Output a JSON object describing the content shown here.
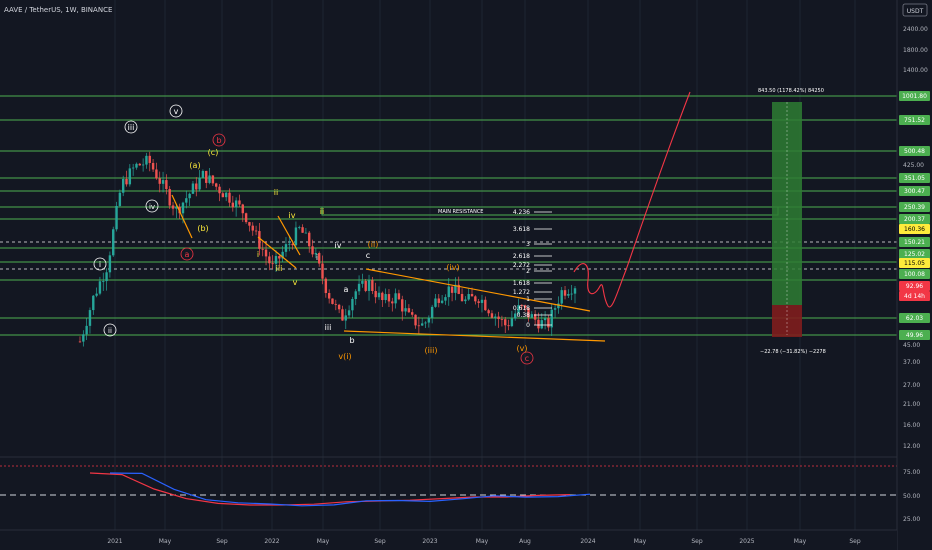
{
  "header": {
    "symbol_line": "AAVE / TetherUS, 1W, BINANCE"
  },
  "axis": {
    "unit_badge": "USDT",
    "price_ticks": [
      "2400.00",
      "1800.00",
      "1400.00",
      "425.00",
      "45.00",
      "37.00",
      "27.00",
      "21.00",
      "16.00",
      "12.00"
    ],
    "indicator_ticks": [
      "75.00",
      "50.00",
      "25.00"
    ],
    "time_ticks": [
      "2021",
      "May",
      "Sep",
      "2022",
      "May",
      "Sep",
      "2023",
      "May",
      "Aug",
      "2024",
      "May",
      "Sep",
      "2025",
      "May",
      "Sep"
    ]
  },
  "levels": [
    {
      "label": "1001.80",
      "color": "#4caf50",
      "text_color": "#ffffff"
    },
    {
      "label": "751.52",
      "color": "#4caf50",
      "text_color": "#ffffff"
    },
    {
      "label": "500.48",
      "color": "#4caf50",
      "text_color": "#ffffff"
    },
    {
      "label": "351.05",
      "color": "#4caf50",
      "text_color": "#ffffff"
    },
    {
      "label": "300.47",
      "color": "#4caf50",
      "text_color": "#ffffff"
    },
    {
      "label": "250.39",
      "color": "#4caf50",
      "text_color": "#ffffff"
    },
    {
      "label": "200.37",
      "color": "#4caf50",
      "text_color": "#ffffff"
    },
    {
      "label": "160.36",
      "color": "#ffeb3b",
      "text_color": "#000000"
    },
    {
      "label": "150.21",
      "color": "#4caf50",
      "text_color": "#ffffff"
    },
    {
      "label": "125.02",
      "color": "#4caf50",
      "text_color": "#ffffff"
    },
    {
      "label": "115.05",
      "color": "#ffeb3b",
      "text_color": "#000000"
    },
    {
      "label": "100.08",
      "color": "#4caf50",
      "text_color": "#ffffff"
    },
    {
      "label": "92.96",
      "color": "#f23645",
      "text_color": "#ffffff"
    },
    {
      "label": "4d 14h",
      "color": "#f23645",
      "text_color": "#ffffff"
    },
    {
      "label": "62.03",
      "color": "#4caf50",
      "text_color": "#ffffff"
    },
    {
      "label": "49.96",
      "color": "#4caf50",
      "text_color": "#ffffff"
    }
  ],
  "annotations": {
    "main_resistance": "MAIN RESISTANCE",
    "target_label": "843.50 (1178.42%) 84250",
    "stop_label": "−22.78 (−31.82%) −2278",
    "fib": [
      "4.236",
      "3.618",
      "3",
      "2.618",
      "2.272",
      "2",
      "1.618",
      "1.272",
      "1",
      "0.618",
      "0.38",
      "0"
    ]
  },
  "wave_labels": {
    "minor_circled": [
      "i",
      "ii",
      "iii",
      "iv",
      "v"
    ],
    "intermediate": [
      "(a)",
      "(b)",
      "(c)"
    ],
    "primary_circled_red": [
      "a",
      "b",
      "c"
    ],
    "roman": [
      "i",
      "ii",
      "iii",
      "iv",
      "v",
      "ii",
      "iv",
      "iii",
      "a",
      "b",
      "c"
    ],
    "orange": [
      "(ii)",
      "(iv)",
      "(iii)",
      "(v)",
      "v(i)"
    ]
  },
  "chart_data": {
    "type": "line",
    "scale": "log",
    "x": [
      "2020-11",
      "2020-12",
      "2021-01",
      "2021-02",
      "2021-03",
      "2021-04",
      "2021-05",
      "2021-06",
      "2021-07",
      "2021-08",
      "2021-09",
      "2021-10",
      "2021-11",
      "2021-12",
      "2022-01",
      "2022-02",
      "2022-03",
      "2022-04",
      "2022-05",
      "2022-06",
      "2022-07",
      "2022-08",
      "2022-09",
      "2022-10",
      "2022-11",
      "2022-12",
      "2023-01",
      "2023-02",
      "2023-03",
      "2023-04",
      "2023-05",
      "2023-06",
      "2023-07",
      "2023-08",
      "2023-09",
      "2023-10",
      "2023-11"
    ],
    "series": [
      {
        "values": [
          45,
          80,
          120,
          330,
          420,
          450,
          330,
          240,
          300,
          380,
          320,
          280,
          230,
          160,
          115,
          150,
          190,
          140,
          85,
          60,
          85,
          95,
          75,
          80,
          60,
          55,
          80,
          90,
          75,
          80,
          65,
          55,
          70,
          60,
          55,
          85,
          93
        ]
      }
    ],
    "ylim": [
      12,
      2400
    ],
    "indicator": {
      "ylim": [
        10,
        100
      ],
      "levels": [
        85,
        50
      ],
      "values": [
        80,
        78,
        60,
        48,
        42,
        40,
        40,
        41,
        44,
        45,
        46,
        48,
        50,
        50,
        52,
        53
      ]
    }
  }
}
